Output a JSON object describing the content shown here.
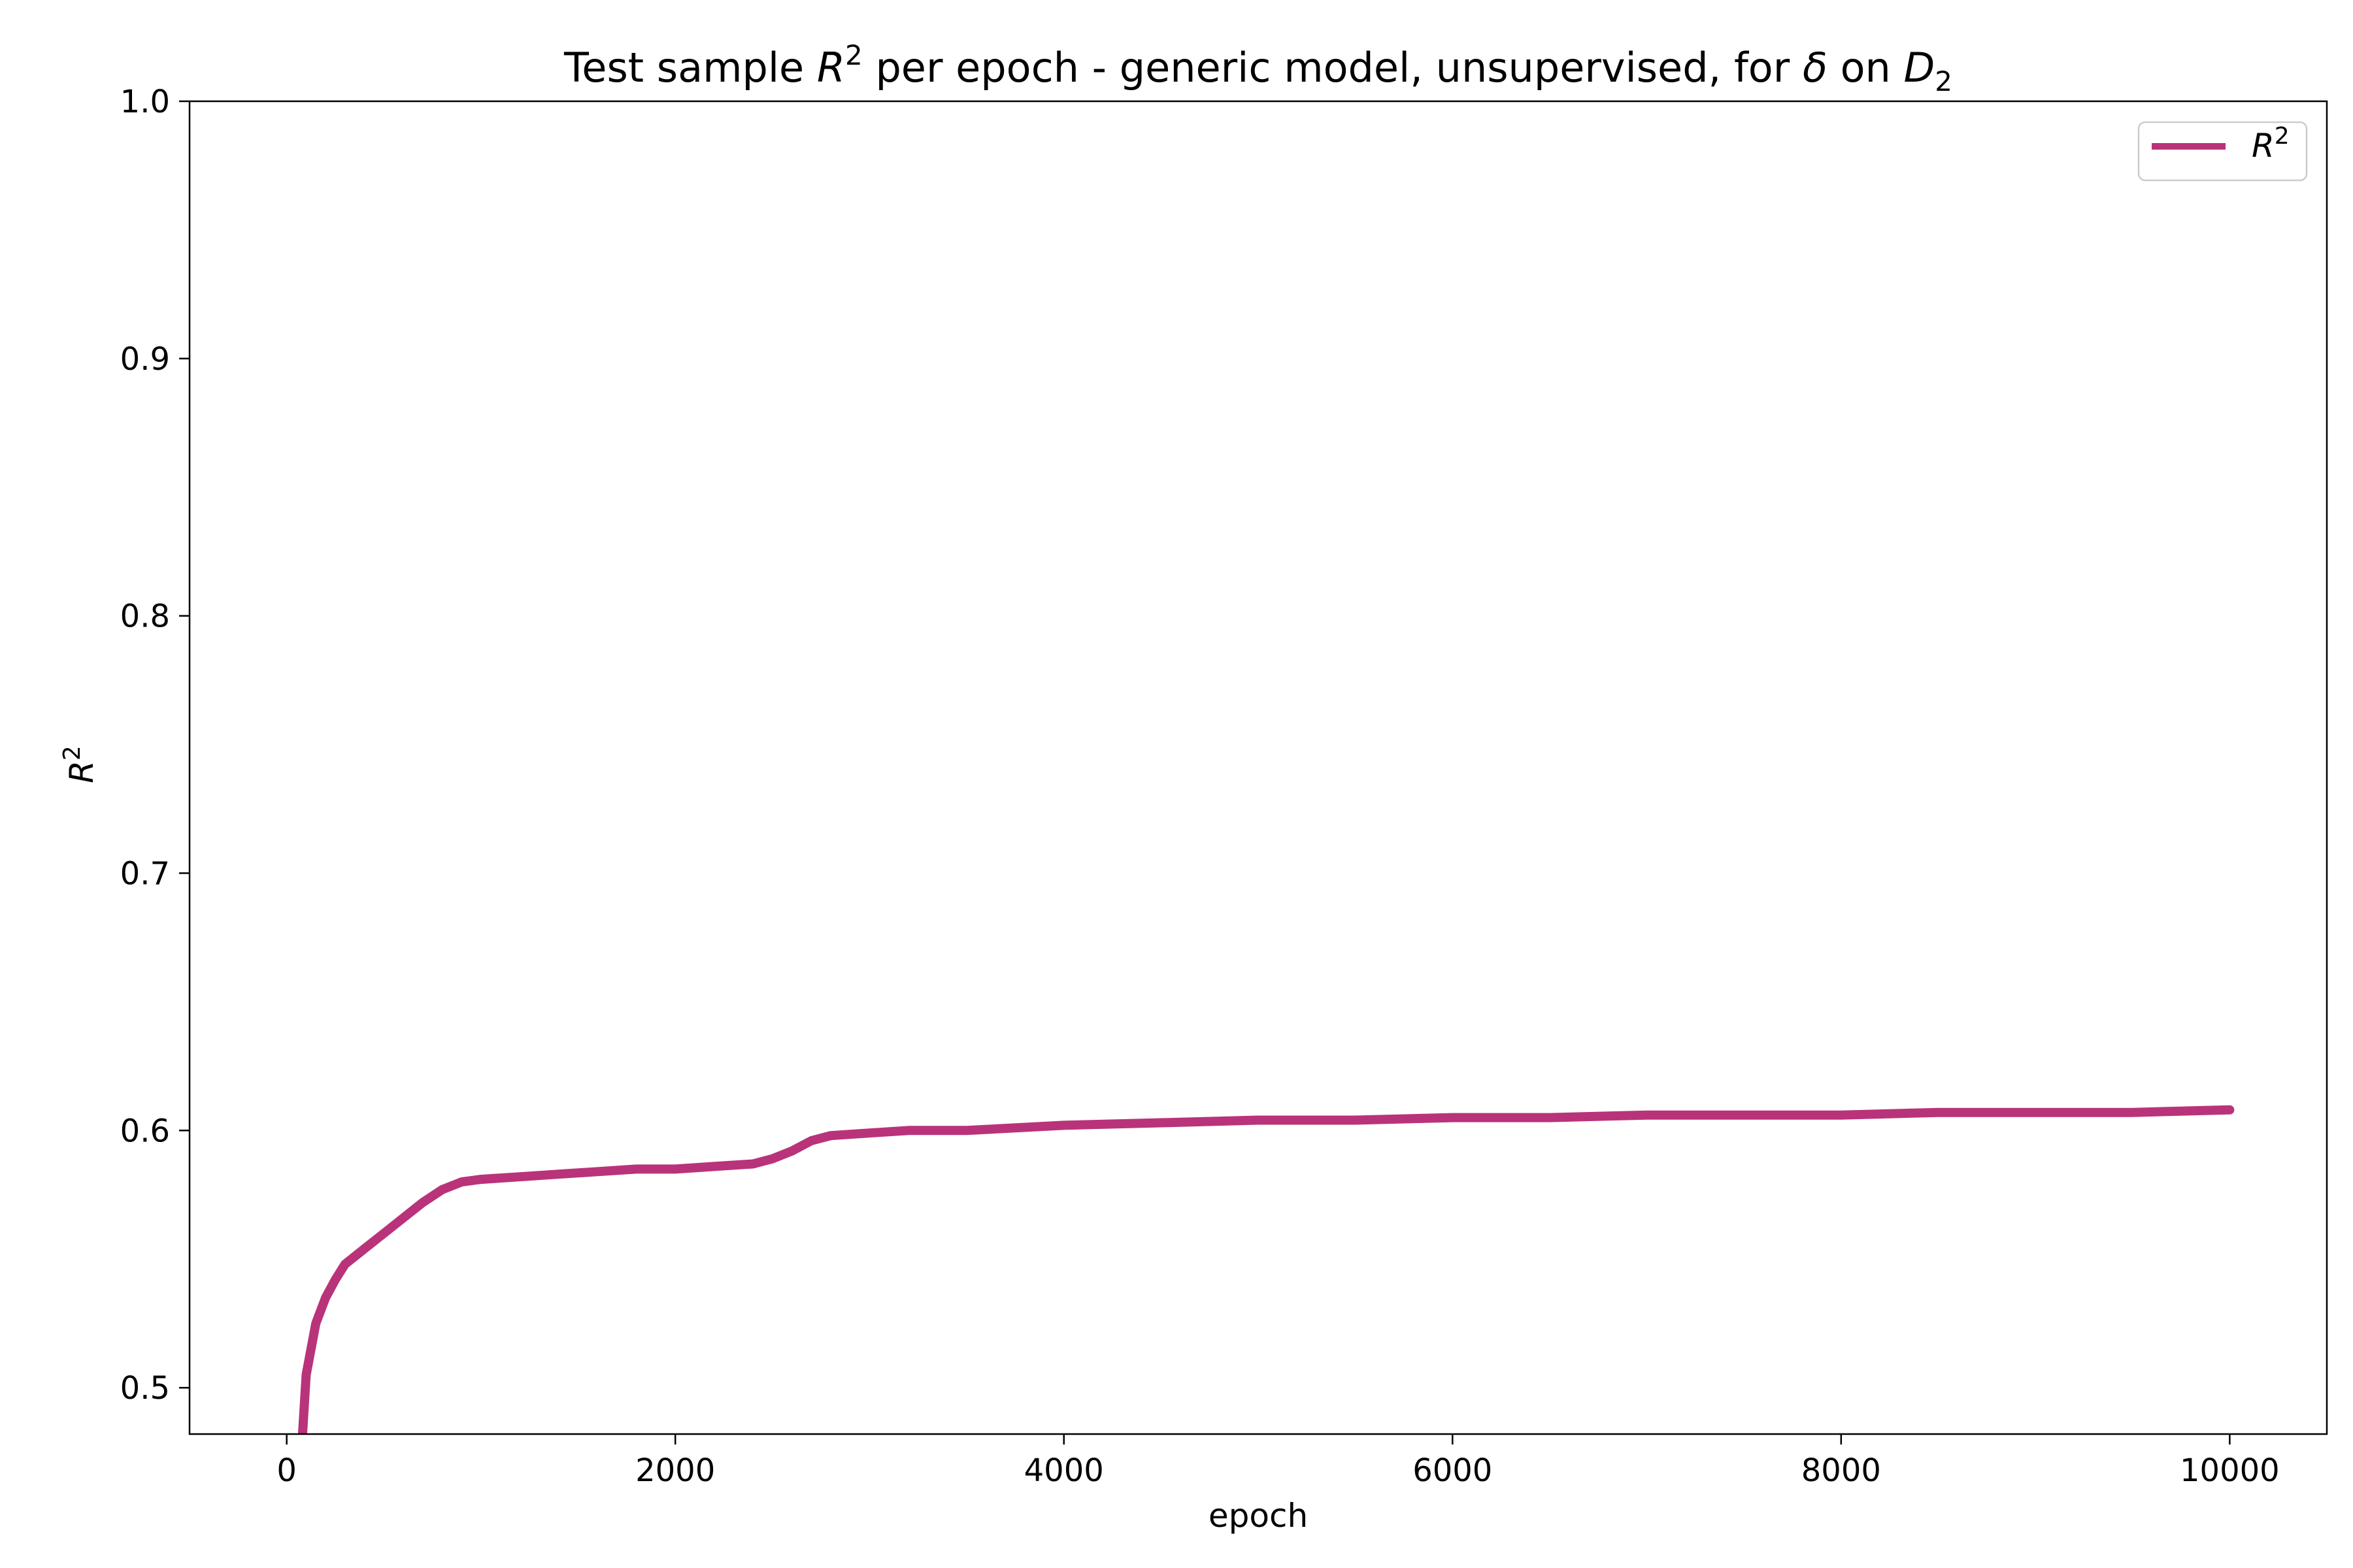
{
  "chart_data": {
    "type": "line",
    "title": {
      "prefix": "Test sample ",
      "r_symbol": "R",
      "r_sup": "2",
      "middle": " per epoch - generic model, unsupervised, for ",
      "delta": "δ",
      "on_text": " on ",
      "d_symbol": "D",
      "d_sub": "2"
    },
    "xlabel": "epoch",
    "ylabel": {
      "symbol": "R",
      "sup": "2"
    },
    "xlim": [
      -500,
      10500
    ],
    "ylim": [
      0.482,
      1.0
    ],
    "xticks": [
      0,
      2000,
      4000,
      6000,
      8000,
      10000
    ],
    "xtick_labels": [
      "0",
      "2000",
      "4000",
      "6000",
      "8000",
      "10000"
    ],
    "yticks": [
      0.5,
      0.6,
      0.7,
      0.8,
      0.9,
      1.0
    ],
    "ytick_labels": [
      "0.5",
      "0.6",
      "0.7",
      "0.8",
      "0.9",
      "1.0"
    ],
    "grid": false,
    "legend_position": "top-right",
    "series": [
      {
        "name": {
          "symbol": "R",
          "sup": "2"
        },
        "color": "#B9337A",
        "x": [
          80,
          100,
          150,
          200,
          250,
          300,
          400,
          500,
          600,
          700,
          800,
          900,
          1000,
          1200,
          1400,
          1600,
          1800,
          2000,
          2200,
          2400,
          2500,
          2600,
          2700,
          2800,
          3000,
          3200,
          3500,
          4000,
          4500,
          5000,
          5500,
          6000,
          6500,
          7000,
          7500,
          8000,
          8500,
          9000,
          9500,
          10000
        ],
        "y": [
          0.48,
          0.505,
          0.525,
          0.535,
          0.542,
          0.548,
          0.554,
          0.56,
          0.566,
          0.572,
          0.577,
          0.58,
          0.581,
          0.582,
          0.583,
          0.584,
          0.585,
          0.585,
          0.586,
          0.587,
          0.589,
          0.592,
          0.596,
          0.598,
          0.599,
          0.6,
          0.6,
          0.602,
          0.603,
          0.604,
          0.604,
          0.605,
          0.605,
          0.606,
          0.606,
          0.606,
          0.607,
          0.607,
          0.607,
          0.608
        ]
      }
    ]
  }
}
